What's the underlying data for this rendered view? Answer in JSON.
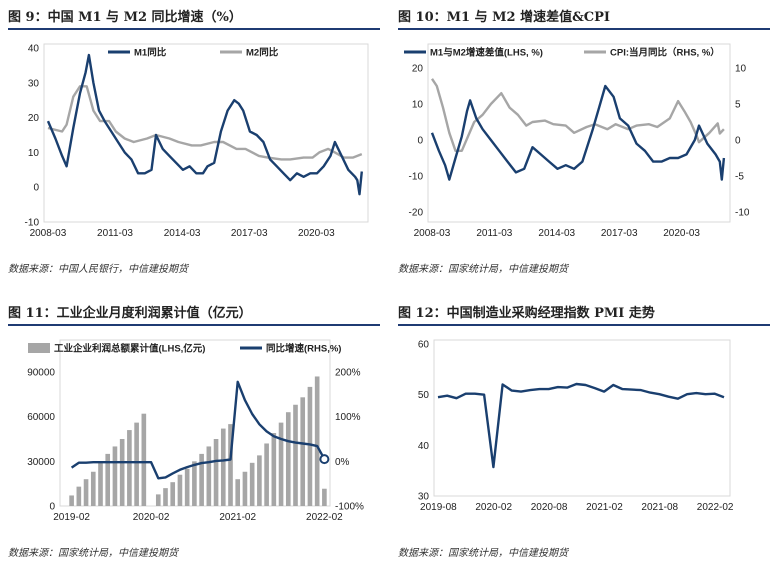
{
  "colors": {
    "navy": "#1a3f6f",
    "gray": "#a6a6a6",
    "rule": "#1f3b73"
  },
  "panels": [
    {
      "title": "图 9：中国 M1 与 M2 同比增速（%）",
      "source": "数据来源：中国人民银行，中信建投期货"
    },
    {
      "title": "图 10：M1 与 M2 增速差值&CPI",
      "source": "数据来源：国家统计局，中信建投期货"
    },
    {
      "title": "图 11：工业企业月度利润累计值（亿元）",
      "source": "数据来源：国家统计局，中信建投期货"
    },
    {
      "title": "图 12：中国制造业采购经理指数 PMI 走势",
      "source": "数据来源：国家统计局，中信建投期货"
    }
  ],
  "chart_data": [
    {
      "type": "line",
      "title": "图 9：中国 M1 与 M2 同比增速（%）",
      "x_ticks": [
        "2008-03",
        "2011-03",
        "2014-03",
        "2017-03",
        "2020-03"
      ],
      "x_range": [
        2008.17,
        2022.3
      ],
      "y_ticks": [
        "-10",
        "0",
        "10",
        "20",
        "30",
        "40"
      ],
      "ylim": [
        -10,
        40
      ],
      "legend_position": "top-right",
      "series": [
        {
          "name": "M1同比",
          "color": "#1a3f6f",
          "x": [
            2008.17,
            2008.5,
            2008.8,
            2009.0,
            2009.3,
            2009.6,
            2009.85,
            2010.0,
            2010.2,
            2010.45,
            2010.7,
            2011.0,
            2011.3,
            2011.6,
            2011.9,
            2012.2,
            2012.5,
            2012.8,
            2013.0,
            2013.3,
            2013.6,
            2013.9,
            2014.2,
            2014.5,
            2014.8,
            2015.1,
            2015.3,
            2015.6,
            2015.9,
            2016.2,
            2016.5,
            2016.7,
            2016.9,
            2017.2,
            2017.5,
            2017.8,
            2018.1,
            2018.4,
            2018.7,
            2019.0,
            2019.3,
            2019.6,
            2019.9,
            2020.2,
            2020.5,
            2020.8,
            2021.0,
            2021.3,
            2021.6,
            2021.9,
            2022.0,
            2022.1,
            2022.2
          ],
          "y": [
            19,
            14,
            9,
            6,
            17,
            27,
            33,
            38,
            30,
            22,
            19,
            16,
            13,
            10,
            8,
            4,
            4,
            5,
            15,
            11,
            9,
            7,
            5,
            6,
            4,
            4,
            6,
            7,
            16,
            22,
            25,
            24,
            22,
            16,
            15,
            13,
            8,
            6,
            4,
            2,
            4,
            3,
            4,
            4,
            6,
            9,
            13,
            9,
            5,
            3,
            2,
            -2,
            4.5
          ]
        },
        {
          "name": "M2同比",
          "color": "#a6a6a6",
          "x": [
            2008.17,
            2008.8,
            2009.0,
            2009.3,
            2009.6,
            2009.9,
            2010.2,
            2010.5,
            2010.9,
            2011.2,
            2011.6,
            2012.0,
            2012.6,
            2013.0,
            2013.6,
            2014.0,
            2014.6,
            2015.0,
            2015.6,
            2016.0,
            2016.6,
            2017.0,
            2017.6,
            2018.0,
            2018.6,
            2019.0,
            2019.6,
            2020.0,
            2020.3,
            2020.7,
            2021.0,
            2021.4,
            2021.8,
            2022.0,
            2022.2
          ],
          "y": [
            17,
            16,
            18,
            26,
            29,
            29,
            22,
            19,
            19,
            16,
            14,
            13,
            14,
            15,
            14,
            13,
            12,
            12,
            13,
            13,
            11,
            11,
            9,
            8.5,
            8,
            8,
            8.5,
            8.5,
            10,
            11,
            10,
            8.5,
            8.5,
            9,
            9.5
          ]
        }
      ]
    },
    {
      "type": "line",
      "title": "图 10：M1 与 M2 增速差值&CPI",
      "x_ticks": [
        "2008-03",
        "2011-03",
        "2014-03",
        "2017-03",
        "2020-03"
      ],
      "x_range": [
        2008.17,
        2022.3
      ],
      "y_left_ticks": [
        "-20",
        "-10",
        "0",
        "10",
        "20"
      ],
      "ylim_left": [
        -20,
        20
      ],
      "y_right_ticks": [
        "-10",
        "-5",
        "0",
        "5",
        "10"
      ],
      "ylim_right": [
        -10,
        10
      ],
      "legend_position": "top",
      "series": [
        {
          "name": "M1与M2增速差值(LHS, %)",
          "axis": "left",
          "color": "#1a3f6f",
          "x": [
            2008.17,
            2008.5,
            2008.8,
            2009.0,
            2009.3,
            2009.6,
            2009.85,
            2010.0,
            2010.3,
            2010.6,
            2011.0,
            2011.4,
            2011.8,
            2012.2,
            2012.6,
            2013.0,
            2013.4,
            2013.8,
            2014.2,
            2014.6,
            2015.0,
            2015.4,
            2015.9,
            2016.2,
            2016.5,
            2016.9,
            2017.2,
            2017.6,
            2018.0,
            2018.4,
            2018.8,
            2019.2,
            2019.6,
            2020.0,
            2020.4,
            2020.8,
            2021.0,
            2021.4,
            2021.8,
            2022.0,
            2022.1,
            2022.2
          ],
          "y": [
            2,
            -3,
            -7,
            -11,
            -5,
            1,
            8,
            11,
            6,
            3,
            0,
            -3,
            -6,
            -9,
            -8,
            -2,
            -4,
            -6,
            -8,
            -7,
            -8,
            -6,
            3,
            9,
            15,
            12,
            6,
            4,
            -1,
            -3,
            -6,
            -6,
            -5,
            -5,
            -4,
            0,
            4,
            -1,
            -4,
            -6,
            -11,
            -5
          ]
        },
        {
          "name": "CPI:当月同比（RHS, %）",
          "axis": "right",
          "color": "#a6a6a6",
          "x": [
            2008.17,
            2008.4,
            2008.7,
            2009.0,
            2009.3,
            2009.6,
            2009.9,
            2010.2,
            2010.6,
            2011.0,
            2011.5,
            2011.9,
            2012.3,
            2012.7,
            2013.0,
            2013.6,
            2014.0,
            2014.6,
            2015.0,
            2015.6,
            2016.0,
            2016.6,
            2017.0,
            2017.6,
            2018.0,
            2018.6,
            2019.0,
            2019.6,
            2020.0,
            2020.3,
            2020.6,
            2020.9,
            2021.0,
            2021.5,
            2021.9,
            2022.0,
            2022.2
          ],
          "y": [
            8.5,
            7.5,
            4.5,
            1,
            -1.5,
            -1.5,
            0.5,
            2.5,
            3.5,
            5,
            6.5,
            4.5,
            3.5,
            2,
            2.5,
            2.7,
            2.2,
            2,
            1,
            1.8,
            2.2,
            1.5,
            2.2,
            1.5,
            2,
            2.2,
            1.8,
            3,
            5.4,
            4,
            2.5,
            0.5,
            -0.3,
            1,
            2.3,
            0.9,
            1.5
          ]
        }
      ]
    },
    {
      "type": "bar",
      "title": "图 11：工业企业月度利润累计值（亿元）",
      "x_ticks": [
        "2019-02",
        "2020-02",
        "2021-02",
        "2022-02"
      ],
      "y_left_ticks": [
        "0",
        "30000",
        "60000",
        "90000"
      ],
      "ylim_left": [
        0,
        90000
      ],
      "y_right_ticks": [
        "-100%",
        "0%",
        "100%",
        "200%"
      ],
      "ylim_right": [
        -100,
        200
      ],
      "legend_position": "top",
      "series": [
        {
          "name": "工业企业利润总额累计值(LHS,亿元)",
          "kind": "bar",
          "axis": "left",
          "color": "#a6a6a6",
          "values": [
            7080,
            13000,
            18000,
            23000,
            29000,
            35000,
            40000,
            45000,
            51000,
            56000,
            62000,
            0,
            7800,
            12000,
            16000,
            21000,
            25000,
            30000,
            35000,
            40000,
            45000,
            52000,
            55000,
            18000,
            23000,
            29000,
            34000,
            42000,
            49000,
            56000,
            63000,
            68000,
            73000,
            80000,
            87000,
            11600
          ]
        },
        {
          "name": "同比增速(RHS,%)",
          "kind": "line",
          "axis": "right",
          "color": "#1a3f6f",
          "values": [
            -14,
            -3,
            -3,
            -2,
            -2,
            -2,
            -2,
            -2,
            -2,
            -2,
            -2,
            -2,
            -38,
            -36,
            -27,
            -19,
            -13,
            -8,
            -4,
            -2,
            1,
            2,
            4,
            178,
            137,
            106,
            83,
            67,
            56,
            50,
            45,
            42,
            40,
            38,
            34,
            5
          ]
        }
      ]
    },
    {
      "type": "line",
      "title": "图 12：中国制造业采购经理指数 PMI 走势",
      "x_ticks": [
        "2019-08",
        "2020-02",
        "2020-08",
        "2021-02",
        "2021-08",
        "2022-02"
      ],
      "x_range": [
        2019.58,
        2022.17
      ],
      "y_ticks": [
        "30",
        "40",
        "50",
        "60"
      ],
      "ylim": [
        30,
        60
      ],
      "series": [
        {
          "name": "PMI",
          "color": "#1a3f6f",
          "values": [
            49.5,
            49.8,
            49.3,
            50.2,
            50.2,
            50.0,
            35.7,
            52.0,
            50.8,
            50.6,
            50.9,
            51.1,
            51.1,
            51.5,
            51.4,
            52.1,
            51.9,
            51.3,
            50.6,
            51.9,
            51.1,
            51.0,
            50.9,
            50.4,
            50.1,
            49.6,
            49.2,
            50.1,
            50.3,
            50.1,
            50.2,
            49.5
          ]
        }
      ]
    }
  ]
}
